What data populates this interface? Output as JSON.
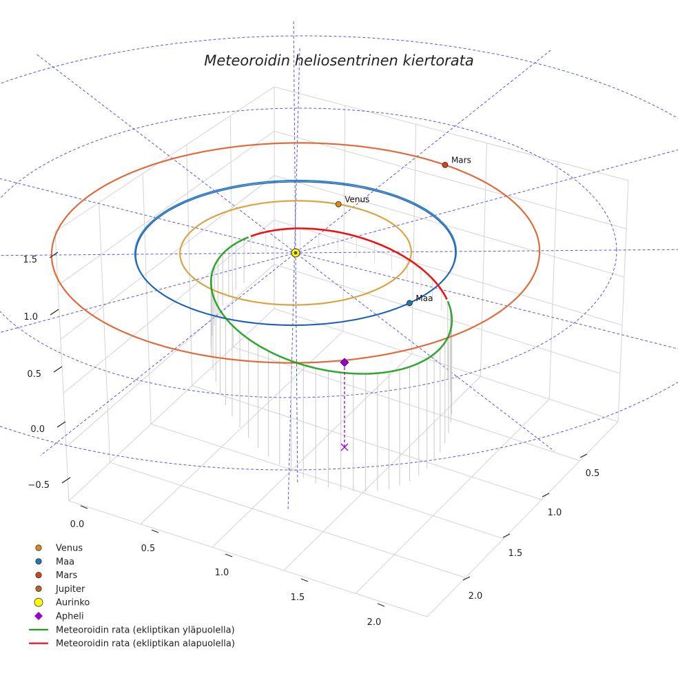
{
  "chart_data": {
    "type": "line",
    "projection": "3d",
    "title": "Meteoroidin heliosentrinen kiertorata",
    "x_axis": {
      "ticks": [
        "0.0",
        "0.5",
        "1.0",
        "1.5",
        "2.0"
      ]
    },
    "y_axis": {
      "ticks": [
        "0.5",
        "1.0",
        "1.5",
        "2.0"
      ]
    },
    "z_axis": {
      "ticks": [
        "−0.5",
        "0.0",
        "0.5",
        "1.0",
        "1.5"
      ]
    },
    "ecliptic_grid": {
      "style": "dashed",
      "color": "#5555dd",
      "ring_radii_au": [
        1,
        2,
        3
      ]
    },
    "planet_orbits": [
      {
        "name": "Venus",
        "radius_au": 0.72,
        "color": "#d9a441"
      },
      {
        "name": "Maa",
        "radius_au": 1.0,
        "color": "#2e86c1"
      },
      {
        "name": "Mars",
        "radius_au": 1.52,
        "color": "#e06a3b"
      }
    ],
    "planets": [
      {
        "name": "Venus",
        "label": "Venus",
        "color": "#d98b1a",
        "angle_deg": 68
      },
      {
        "name": "Maa",
        "label": "Maa",
        "color": "#1f77b4",
        "angle_deg": -45
      },
      {
        "name": "Mars",
        "label": "Mars",
        "color": "#d2461f",
        "angle_deg": 52
      }
    ],
    "sun": {
      "name": "Aurinko",
      "color": "#ffff00"
    },
    "meteoroid_orbit": {
      "above_ecliptic": {
        "name": "Meteoroidin rata (ekliptikan yläpuolella)",
        "color": "#119911"
      },
      "below_ecliptic": {
        "name": "Meteoroidin rata (ekliptikan alapuolella)",
        "color": "#ee1111"
      }
    },
    "aphelion": {
      "name": "Apheli",
      "color": "#9900cc"
    },
    "legend": {
      "position": "bottom-left",
      "items": [
        {
          "label": "Venus",
          "marker": "circle",
          "color": "#d98b1a"
        },
        {
          "label": "Maa",
          "marker": "circle",
          "color": "#1f77b4"
        },
        {
          "label": "Mars",
          "marker": "circle",
          "color": "#d2461f"
        },
        {
          "label": "Jupiter",
          "marker": "circle",
          "color": "#b5652a"
        },
        {
          "label": "Aurinko",
          "marker": "circle-big",
          "color": "#ffff00"
        },
        {
          "label": "Apheli",
          "marker": "diamond",
          "color": "#9900cc"
        },
        {
          "label": "Meteoroidin rata (ekliptikan yläpuolella)",
          "marker": "line",
          "color": "#119911"
        },
        {
          "label": "Meteoroidin rata (ekliptikan alapuolella)",
          "marker": "line",
          "color": "#ee1111"
        }
      ]
    }
  }
}
